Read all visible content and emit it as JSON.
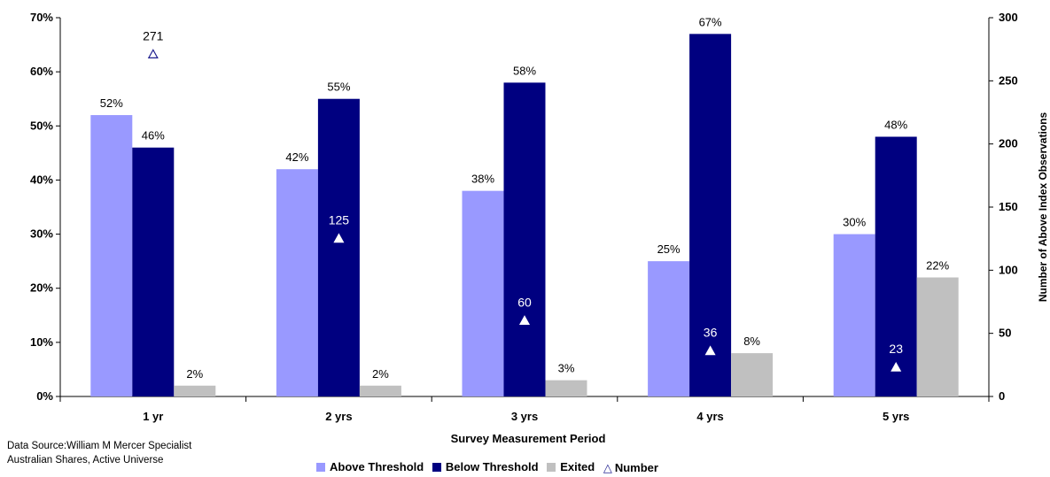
{
  "chart_data": {
    "type": "bar",
    "categories": [
      "1 yr",
      "2 yrs",
      "3 yrs",
      "4 yrs",
      "5 yrs"
    ],
    "series": [
      {
        "name": "Above Threshold",
        "values": [
          52,
          42,
          38,
          25,
          30
        ],
        "labels": [
          "52%",
          "42%",
          "38%",
          "25%",
          "30%"
        ],
        "color": "#9999ff",
        "axis": "left"
      },
      {
        "name": "Below Threshold",
        "values": [
          46,
          55,
          58,
          67,
          48
        ],
        "labels": [
          "46%",
          "55%",
          "58%",
          "67%",
          "48%"
        ],
        "color": "#000080",
        "axis": "left"
      },
      {
        "name": "Exited",
        "values": [
          2,
          2,
          3,
          8,
          22
        ],
        "labels": [
          "2%",
          "2%",
          "3%",
          "8%",
          "22%"
        ],
        "color": "#c0c0c0",
        "axis": "left"
      },
      {
        "name": "Number",
        "type": "scatter",
        "marker": "triangle",
        "values": [
          271,
          125,
          60,
          36,
          23
        ],
        "labels": [
          "271",
          "125",
          "60",
          "36",
          "23"
        ],
        "color": "#1f1f8f",
        "axis": "right"
      }
    ],
    "xlabel": "Survey Measurement Period",
    "ylabel_left": "",
    "ylabel_right": "Number of Above Index Observations",
    "ylim_left": [
      0,
      70
    ],
    "ylim_right": [
      0,
      300
    ],
    "left_ticks": [
      "0%",
      "10%",
      "20%",
      "30%",
      "40%",
      "50%",
      "60%",
      "70%"
    ],
    "right_ticks": [
      "0",
      "50",
      "100",
      "150",
      "200",
      "250",
      "300"
    ],
    "grid": false,
    "legend_position": "bottom"
  },
  "source_note": [
    "Data Source:William M Mercer Specialist",
    "Australian Shares, Active Universe"
  ]
}
